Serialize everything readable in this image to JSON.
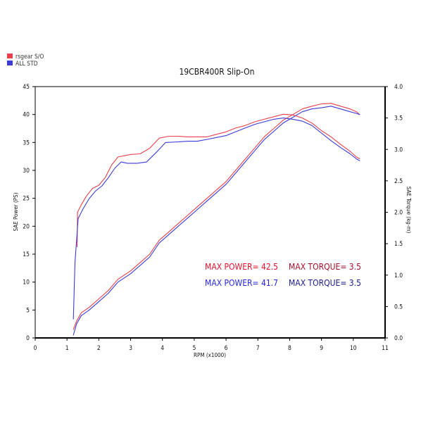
{
  "chart_data": {
    "type": "line",
    "title": "19CBR400R Slip-On",
    "legend_position": "top-left",
    "legend": [
      {
        "label": "rsgear S/O",
        "color": "#e8404d"
      },
      {
        "label": "ALL STD",
        "color": "#3b3bd6"
      }
    ],
    "xlabel": "RPM (x1000)",
    "ylabel_left": "SAE Power (PS)",
    "ylabel_right": "SAE Torque (kg-m)",
    "xlim": [
      0,
      11
    ],
    "ylim_left": [
      0,
      45
    ],
    "ylim_right": [
      0.0,
      4.0
    ],
    "x_ticks": [
      "0",
      "1",
      "2",
      "3",
      "4",
      "5",
      "6",
      "7",
      "8",
      "9",
      "10",
      "11"
    ],
    "y_left_ticks": [
      "0",
      "5",
      "10",
      "15",
      "20",
      "25",
      "30",
      "35",
      "40",
      "45"
    ],
    "y_right_ticks": [
      "0.0",
      "0.5",
      "1.0",
      "1.5",
      "2.0",
      "2.5",
      "3.0",
      "3.5",
      "4.0"
    ],
    "grid": false,
    "annotations": {
      "rs_power": "MAX POWER= 42.5",
      "rs_torque": "MAX TORQUE= 3.5",
      "std_power": "MAX POWER= 41.7",
      "std_torque": "MAX TORQUE= 3.5"
    },
    "series": [
      {
        "name": "rsgear S/O",
        "kind": "power",
        "axis": "left",
        "color": "#e8404d",
        "points": [
          [
            1.2,
            1.5
          ],
          [
            1.3,
            3.0
          ],
          [
            1.45,
            4.5
          ],
          [
            1.7,
            5.5
          ],
          [
            2.0,
            7.0
          ],
          [
            2.3,
            8.5
          ],
          [
            2.6,
            10.5
          ],
          [
            3.0,
            12.0
          ],
          [
            3.3,
            13.5
          ],
          [
            3.6,
            15.0
          ],
          [
            3.9,
            17.5
          ],
          [
            4.2,
            19.0
          ],
          [
            4.5,
            20.5
          ],
          [
            4.8,
            22.0
          ],
          [
            5.1,
            23.5
          ],
          [
            5.4,
            25.0
          ],
          [
            5.7,
            26.5
          ],
          [
            6.0,
            28.0
          ],
          [
            6.3,
            30.0
          ],
          [
            6.6,
            32.0
          ],
          [
            6.9,
            34.0
          ],
          [
            7.2,
            36.0
          ],
          [
            7.5,
            37.5
          ],
          [
            7.8,
            39.0
          ],
          [
            8.1,
            40.0
          ],
          [
            8.4,
            41.0
          ],
          [
            8.7,
            41.5
          ],
          [
            9.0,
            41.9
          ],
          [
            9.3,
            42.0
          ],
          [
            9.6,
            41.5
          ],
          [
            9.9,
            41.0
          ],
          [
            10.1,
            40.5
          ],
          [
            10.2,
            40.0
          ]
        ]
      },
      {
        "name": "ALL STD",
        "kind": "power",
        "axis": "left",
        "color": "#3b3bd6",
        "points": [
          [
            1.2,
            0.5
          ],
          [
            1.3,
            2.5
          ],
          [
            1.45,
            4.0
          ],
          [
            1.7,
            5.0
          ],
          [
            2.0,
            6.5
          ],
          [
            2.3,
            8.0
          ],
          [
            2.6,
            10.0
          ],
          [
            3.0,
            11.5
          ],
          [
            3.3,
            13.0
          ],
          [
            3.6,
            14.5
          ],
          [
            3.9,
            17.0
          ],
          [
            4.2,
            18.5
          ],
          [
            4.5,
            20.0
          ],
          [
            4.8,
            21.5
          ],
          [
            5.1,
            23.0
          ],
          [
            5.4,
            24.5
          ],
          [
            5.7,
            26.0
          ],
          [
            6.0,
            27.5
          ],
          [
            6.3,
            29.5
          ],
          [
            6.6,
            31.5
          ],
          [
            6.9,
            33.5
          ],
          [
            7.2,
            35.5
          ],
          [
            7.5,
            37.0
          ],
          [
            7.8,
            38.5
          ],
          [
            8.1,
            39.5
          ],
          [
            8.4,
            40.5
          ],
          [
            8.7,
            41.0
          ],
          [
            9.0,
            41.2
          ],
          [
            9.3,
            41.5
          ],
          [
            9.6,
            41.0
          ],
          [
            9.9,
            40.5
          ],
          [
            10.1,
            40.2
          ],
          [
            10.2,
            40.0
          ]
        ]
      },
      {
        "name": "rsgear S/O",
        "kind": "torque",
        "axis": "right",
        "color": "#e8404d",
        "points": [
          [
            1.32,
            1.45
          ],
          [
            1.33,
            2.0
          ],
          [
            1.45,
            2.12
          ],
          [
            1.6,
            2.25
          ],
          [
            1.8,
            2.38
          ],
          [
            2.0,
            2.43
          ],
          [
            2.2,
            2.55
          ],
          [
            2.4,
            2.75
          ],
          [
            2.6,
            2.88
          ],
          [
            2.8,
            2.9
          ],
          [
            3.0,
            2.92
          ],
          [
            3.3,
            2.93
          ],
          [
            3.6,
            3.02
          ],
          [
            3.9,
            3.18
          ],
          [
            4.2,
            3.21
          ],
          [
            4.5,
            3.21
          ],
          [
            4.8,
            3.2
          ],
          [
            5.1,
            3.2
          ],
          [
            5.4,
            3.2
          ],
          [
            5.7,
            3.24
          ],
          [
            6.0,
            3.28
          ],
          [
            6.3,
            3.34
          ],
          [
            6.6,
            3.38
          ],
          [
            6.9,
            3.44
          ],
          [
            7.2,
            3.48
          ],
          [
            7.5,
            3.52
          ],
          [
            7.8,
            3.56
          ],
          [
            8.1,
            3.55
          ],
          [
            8.4,
            3.5
          ],
          [
            8.7,
            3.42
          ],
          [
            9.0,
            3.3
          ],
          [
            9.3,
            3.2
          ],
          [
            9.6,
            3.08
          ],
          [
            9.9,
            2.97
          ],
          [
            10.1,
            2.88
          ],
          [
            10.2,
            2.85
          ]
        ]
      },
      {
        "name": "ALL STD",
        "kind": "torque",
        "axis": "right",
        "color": "#3b3bd6",
        "points": [
          [
            1.2,
            0.3
          ],
          [
            1.25,
            1.2
          ],
          [
            1.35,
            1.9
          ],
          [
            1.5,
            2.05
          ],
          [
            1.7,
            2.22
          ],
          [
            1.9,
            2.34
          ],
          [
            2.1,
            2.42
          ],
          [
            2.3,
            2.55
          ],
          [
            2.5,
            2.7
          ],
          [
            2.7,
            2.8
          ],
          [
            2.9,
            2.78
          ],
          [
            3.2,
            2.78
          ],
          [
            3.5,
            2.8
          ],
          [
            3.8,
            2.95
          ],
          [
            4.1,
            3.11
          ],
          [
            4.5,
            3.12
          ],
          [
            4.8,
            3.13
          ],
          [
            5.1,
            3.13
          ],
          [
            5.4,
            3.16
          ],
          [
            5.7,
            3.19
          ],
          [
            6.0,
            3.22
          ],
          [
            6.3,
            3.28
          ],
          [
            6.6,
            3.34
          ],
          [
            6.9,
            3.4
          ],
          [
            7.2,
            3.44
          ],
          [
            7.5,
            3.48
          ],
          [
            7.8,
            3.5
          ],
          [
            8.1,
            3.48
          ],
          [
            8.4,
            3.45
          ],
          [
            8.7,
            3.38
          ],
          [
            9.0,
            3.26
          ],
          [
            9.3,
            3.14
          ],
          [
            9.6,
            3.03
          ],
          [
            9.9,
            2.93
          ],
          [
            10.1,
            2.85
          ],
          [
            10.2,
            2.82
          ]
        ]
      }
    ]
  }
}
